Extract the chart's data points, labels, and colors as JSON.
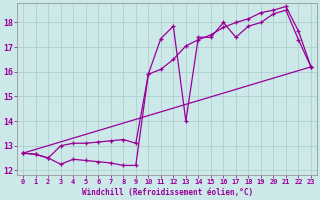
{
  "xlabel": "Windchill (Refroidissement éolien,°C)",
  "xlim": [
    -0.5,
    23.5
  ],
  "ylim": [
    11.8,
    18.8
  ],
  "yticks": [
    12,
    13,
    14,
    15,
    16,
    17,
    18
  ],
  "xticks": [
    0,
    1,
    2,
    3,
    4,
    5,
    6,
    7,
    8,
    9,
    10,
    11,
    12,
    13,
    14,
    15,
    16,
    17,
    18,
    19,
    20,
    21,
    22,
    23
  ],
  "bg_color": "#cce8e8",
  "line_color": "#990099",
  "grid_color": "#aacccc",
  "line1_x": [
    0,
    1,
    2,
    3,
    4,
    5,
    6,
    7,
    8,
    9,
    10,
    11,
    12,
    13,
    14,
    15,
    16,
    17,
    18,
    19,
    20,
    21,
    22,
    23
  ],
  "line1_y": [
    12.7,
    12.65,
    12.5,
    12.25,
    12.45,
    12.4,
    12.35,
    12.3,
    12.2,
    12.2,
    15.9,
    17.35,
    17.85,
    14.0,
    17.4,
    17.4,
    18.0,
    17.4,
    17.85,
    18.0,
    18.35,
    18.5,
    17.3,
    16.2
  ],
  "line2_x": [
    0,
    1,
    2,
    3,
    4,
    5,
    6,
    7,
    8,
    9,
    10,
    11,
    12,
    13,
    14,
    15,
    16,
    17,
    18,
    19,
    20,
    21,
    22,
    23
  ],
  "line2_y": [
    12.7,
    12.65,
    12.5,
    13.0,
    13.1,
    13.1,
    13.15,
    13.2,
    13.25,
    13.1,
    15.9,
    16.1,
    16.5,
    17.05,
    17.3,
    17.5,
    17.8,
    18.0,
    18.15,
    18.4,
    18.5,
    18.65,
    17.65,
    16.2
  ],
  "line3_x": [
    0,
    23
  ],
  "line3_y": [
    12.7,
    16.2
  ]
}
